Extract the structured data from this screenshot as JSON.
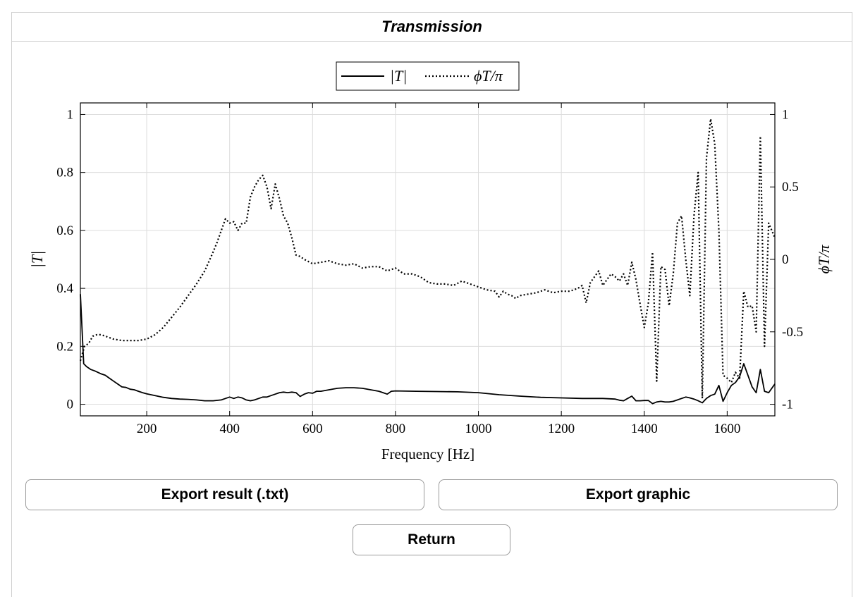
{
  "panel": {
    "title": "Transmission"
  },
  "buttons": {
    "export_txt": "Export result (.txt)",
    "export_graphic": "Export graphic",
    "return": "Return"
  },
  "chart_data": {
    "type": "line",
    "title": "",
    "xlabel": "Frequency [Hz]",
    "ylabel": "|T|",
    "y2label": "ϕT/π",
    "xlim": [
      40,
      1715
    ],
    "ylim": [
      -0.04,
      1.04
    ],
    "y2lim": [
      -1.08,
      1.08
    ],
    "xticks": [
      200,
      400,
      600,
      800,
      1000,
      1200,
      1400,
      1600
    ],
    "yticks": [
      0,
      0.2,
      0.4,
      0.6,
      0.8,
      1
    ],
    "ytick_labels": [
      "0",
      "0.2",
      "0.4",
      "0.6",
      "0.8",
      "1"
    ],
    "y2ticks": [
      -1,
      -0.5,
      0,
      0.5,
      1
    ],
    "y2tick_labels": [
      "-1",
      "-0.5",
      "0",
      "0.5",
      "1"
    ],
    "grid": true,
    "legend_position": "top-center",
    "legend": [
      {
        "label": "|T|",
        "style": "solid"
      },
      {
        "label": "ϕT/π",
        "style": "dotted"
      }
    ],
    "series": [
      {
        "name": "|T|",
        "axis": "left",
        "x": [
          40,
          48,
          55,
          65,
          75,
          90,
          100,
          110,
          120,
          130,
          140,
          150,
          160,
          170,
          180,
          190,
          200,
          220,
          240,
          260,
          280,
          300,
          320,
          340,
          360,
          380,
          390,
          400,
          410,
          420,
          430,
          440,
          450,
          460,
          470,
          480,
          490,
          500,
          510,
          520,
          530,
          540,
          550,
          560,
          570,
          580,
          590,
          600,
          610,
          620,
          640,
          660,
          680,
          700,
          720,
          740,
          760,
          770,
          780,
          790,
          800,
          850,
          900,
          950,
          1000,
          1050,
          1100,
          1150,
          1200,
          1250,
          1300,
          1330,
          1340,
          1350,
          1360,
          1370,
          1380,
          1390,
          1400,
          1410,
          1420,
          1430,
          1440,
          1450,
          1460,
          1470,
          1480,
          1490,
          1500,
          1510,
          1520,
          1530,
          1540,
          1550,
          1560,
          1570,
          1580,
          1590,
          1600,
          1610,
          1620,
          1630,
          1640,
          1650,
          1660,
          1670,
          1680,
          1690,
          1700,
          1715
        ],
        "y": [
          0.38,
          0.14,
          0.13,
          0.12,
          0.115,
          0.105,
          0.1,
          0.09,
          0.08,
          0.07,
          0.06,
          0.058,
          0.052,
          0.05,
          0.045,
          0.04,
          0.036,
          0.03,
          0.024,
          0.02,
          0.018,
          0.017,
          0.015,
          0.012,
          0.012,
          0.015,
          0.02,
          0.025,
          0.02,
          0.025,
          0.022,
          0.015,
          0.012,
          0.015,
          0.02,
          0.025,
          0.025,
          0.03,
          0.035,
          0.04,
          0.042,
          0.04,
          0.042,
          0.04,
          0.027,
          0.035,
          0.04,
          0.038,
          0.045,
          0.045,
          0.05,
          0.055,
          0.057,
          0.057,
          0.055,
          0.05,
          0.045,
          0.04,
          0.035,
          0.045,
          0.046,
          0.045,
          0.044,
          0.043,
          0.04,
          0.033,
          0.028,
          0.024,
          0.022,
          0.02,
          0.02,
          0.018,
          0.014,
          0.012,
          0.02,
          0.028,
          0.012,
          0.012,
          0.013,
          0.013,
          0.002,
          0.008,
          0.01,
          0.008,
          0.008,
          0.01,
          0.015,
          0.02,
          0.025,
          0.022,
          0.018,
          0.012,
          0.005,
          0.02,
          0.03,
          0.035,
          0.065,
          0.01,
          0.04,
          0.065,
          0.075,
          0.095,
          0.14,
          0.1,
          0.06,
          0.04,
          0.12,
          0.045,
          0.04,
          0.07
        ]
      },
      {
        "name": "ϕT/π",
        "axis": "right",
        "x": [
          40,
          50,
          60,
          70,
          80,
          90,
          100,
          120,
          140,
          160,
          180,
          200,
          220,
          240,
          260,
          280,
          300,
          320,
          340,
          360,
          370,
          380,
          390,
          400,
          410,
          420,
          430,
          440,
          450,
          460,
          470,
          480,
          490,
          500,
          510,
          520,
          530,
          540,
          550,
          560,
          570,
          580,
          600,
          620,
          640,
          660,
          680,
          700,
          720,
          740,
          760,
          780,
          800,
          820,
          840,
          860,
          880,
          900,
          920,
          940,
          960,
          980,
          1000,
          1020,
          1040,
          1050,
          1060,
          1070,
          1080,
          1090,
          1100,
          1120,
          1140,
          1160,
          1180,
          1200,
          1220,
          1240,
          1250,
          1260,
          1270,
          1280,
          1290,
          1300,
          1310,
          1320,
          1330,
          1340,
          1350,
          1360,
          1370,
          1380,
          1390,
          1400,
          1410,
          1420,
          1430,
          1440,
          1450,
          1460,
          1470,
          1480,
          1490,
          1500,
          1510,
          1520,
          1530,
          1540,
          1550,
          1560,
          1570,
          1580,
          1590,
          1600,
          1610,
          1620,
          1630,
          1640,
          1650,
          1660,
          1670,
          1680,
          1690,
          1700,
          1715
        ],
        "y": [
          -0.7,
          -0.6,
          -0.58,
          -0.53,
          -0.52,
          -0.52,
          -0.53,
          -0.55,
          -0.56,
          -0.56,
          -0.56,
          -0.55,
          -0.52,
          -0.47,
          -0.4,
          -0.33,
          -0.25,
          -0.17,
          -0.08,
          0.05,
          0.12,
          0.2,
          0.28,
          0.25,
          0.26,
          0.2,
          0.25,
          0.25,
          0.43,
          0.5,
          0.55,
          0.58,
          0.5,
          0.35,
          0.52,
          0.42,
          0.3,
          0.25,
          0.15,
          0.03,
          0.02,
          0.0,
          -0.03,
          -0.02,
          -0.01,
          -0.03,
          -0.04,
          -0.03,
          -0.06,
          -0.05,
          -0.05,
          -0.08,
          -0.06,
          -0.1,
          -0.1,
          -0.12,
          -0.16,
          -0.17,
          -0.17,
          -0.18,
          -0.15,
          -0.17,
          -0.19,
          -0.21,
          -0.22,
          -0.26,
          -0.22,
          -0.24,
          -0.25,
          -0.27,
          -0.25,
          -0.24,
          -0.23,
          -0.21,
          -0.23,
          -0.22,
          -0.22,
          -0.2,
          -0.18,
          -0.3,
          -0.16,
          -0.12,
          -0.08,
          -0.18,
          -0.14,
          -0.1,
          -0.12,
          -0.15,
          -0.1,
          -0.18,
          -0.02,
          -0.14,
          -0.31,
          -0.47,
          -0.3,
          0.05,
          -0.84,
          -0.05,
          -0.07,
          -0.32,
          -0.1,
          0.25,
          0.3,
          0.0,
          -0.25,
          0.3,
          0.6,
          -0.96,
          0.7,
          0.97,
          0.8,
          0.2,
          -0.8,
          -0.82,
          -0.85,
          -0.78,
          -0.82,
          -0.22,
          -0.33,
          -0.32,
          -0.5,
          0.85,
          -0.6,
          0.25,
          0.15
        ]
      }
    ]
  }
}
